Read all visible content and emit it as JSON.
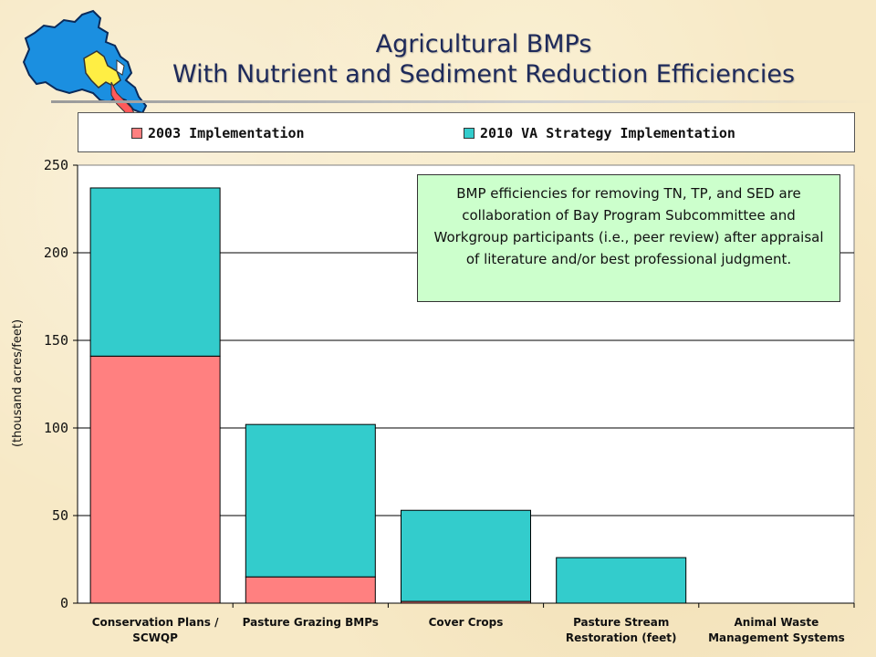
{
  "slide": {
    "title_line1": "Agricultural BMPs",
    "title_line2": "With Nutrient and Sediment Reduction Efficiencies",
    "logo": "chesapeake-bay-watershed-map-icon"
  },
  "note": {
    "text": "BMP efficiencies for removing TN, TP, and SED are collaboration of Bay Program Subcommittee and Workgroup participants (i.e., peer review) after appraisal of literature and/or best professional judgment."
  },
  "chart_data": {
    "type": "bar",
    "stacked": true,
    "categories": [
      [
        "Conservation Plans /",
        "SCWQP"
      ],
      [
        "Pasture Grazing BMPs"
      ],
      [
        "Cover Crops"
      ],
      [
        "Pasture Stream",
        "Restoration (feet)"
      ],
      [
        "Animal Waste",
        "Management Systems"
      ]
    ],
    "series": [
      {
        "name": "2003 Implementation",
        "color": "#ff8080",
        "values": [
          141,
          15,
          1,
          0,
          0
        ]
      },
      {
        "name": "2010 VA Strategy Implementation",
        "color": "#33cccc",
        "values": [
          96,
          87,
          52,
          26,
          0
        ]
      }
    ],
    "title": "",
    "xlabel": "",
    "ylabel": "(thousand acres/feet)",
    "ylim": [
      0,
      250
    ],
    "yticks": [
      "0",
      "50",
      "100",
      "150",
      "200",
      "250"
    ],
    "grid": true,
    "legend_position": "top"
  }
}
